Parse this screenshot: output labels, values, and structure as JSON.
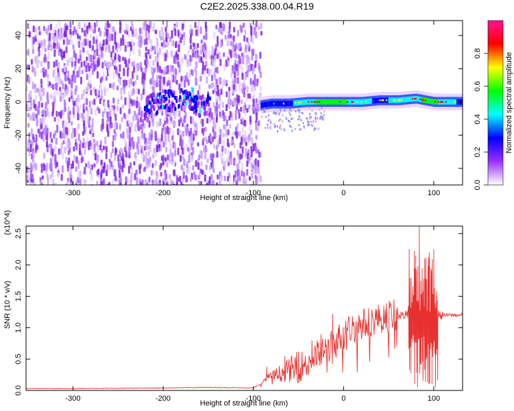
{
  "title": "C2E2.2025.338.00.04.R19",
  "chart_data": [
    {
      "type": "heatmap",
      "xlabel": "Height of straight line (km)",
      "ylabel": "Frequency (Hz)",
      "xlim": [
        -352,
        132
      ],
      "ylim": [
        -50,
        49
      ],
      "xticks": [
        -300,
        -200,
        -100,
        0,
        100
      ],
      "yticks": [
        -40,
        -20,
        0,
        20,
        40
      ],
      "colorbar": {
        "label": "Normalized spectral amplitude",
        "range": [
          0.0,
          1.0
        ],
        "ticks": [
          "0.0",
          "0.2",
          "0.4",
          "0.6",
          "0.8"
        ],
        "colors": [
          "#ffffff",
          "#9b30ff",
          "#0000ff",
          "#00ffff",
          "#00ff00",
          "#ffff00",
          "#ff0000",
          "#ff1493"
        ]
      },
      "regions": {
        "noise_band": [
          -352,
          -92
        ],
        "signal_band": [
          -92,
          132
        ]
      },
      "signal_trace": {
        "x": [
          -92,
          -80,
          -60,
          -40,
          -20,
          0,
          20,
          40,
          60,
          80,
          100,
          132
        ],
        "y": [
          -2,
          -1,
          -1,
          0,
          0,
          0,
          0,
          1,
          1,
          2,
          0,
          0
        ],
        "amplitude": [
          0.45,
          0.5,
          0.55,
          0.7,
          0.85,
          0.8,
          0.6,
          0.55,
          0.6,
          0.75,
          0.8,
          0.5
        ]
      },
      "blobs": [
        {
          "x": -213,
          "y": 0,
          "amplitude": 0.3
        },
        {
          "x": -195,
          "y": 2,
          "amplitude": 0.3
        },
        {
          "x": -175,
          "y": 3,
          "amplitude": 0.35
        },
        {
          "x": -158,
          "y": -1,
          "amplitude": 0.3
        }
      ]
    },
    {
      "type": "line",
      "xlabel": "Height of straight line (km)",
      "ylabel": "SNR (10 * v/v)",
      "yscale_label": "(x10^4)",
      "xlim": [
        -352,
        132
      ],
      "ylim": [
        0,
        2.62
      ],
      "xticks": [
        -300,
        -200,
        -100,
        0,
        100
      ],
      "yticks": [
        0.0,
        0.5,
        1.0,
        1.5,
        2.0,
        2.5
      ],
      "series": [
        {
          "color": "#e8312f",
          "x": [
            -352,
            -300,
            -200,
            -150,
            -100,
            -92,
            -85,
            -75,
            -65,
            -55,
            -45,
            -35,
            -25,
            -15,
            -5,
            0,
            10,
            20,
            30,
            40,
            50,
            60,
            70,
            75,
            80,
            85,
            90,
            95,
            100,
            105,
            110,
            120,
            132
          ],
          "y": [
            0.03,
            0.03,
            0.04,
            0.05,
            0.04,
            0.1,
            0.2,
            0.25,
            0.3,
            0.35,
            0.4,
            0.5,
            0.6,
            0.7,
            0.8,
            0.9,
            1.0,
            1.05,
            1.1,
            1.15,
            1.2,
            1.2,
            1.2,
            1.25,
            1.3,
            1.25,
            1.2,
            1.2,
            1.2,
            1.2,
            1.2,
            1.2,
            1.2
          ],
          "spikes": [
            {
              "x": -85,
              "y": 0.38
            },
            {
              "x": -65,
              "y": 0.55
            },
            {
              "x": -50,
              "y": 0.62
            },
            {
              "x": -35,
              "y": 0.8
            },
            {
              "x": -25,
              "y": 0.9
            },
            {
              "x": -12,
              "y": 1.22
            },
            {
              "x": -5,
              "y": 1.05
            },
            {
              "x": 75,
              "y": 1.8
            },
            {
              "x": 80,
              "y": 2.15
            },
            {
              "x": 84,
              "y": 2.62
            },
            {
              "x": 90,
              "y": 2.1
            },
            {
              "x": 95,
              "y": 2.2
            },
            {
              "x": 100,
              "y": 2.25
            },
            {
              "x": 82,
              "y": 0.05
            },
            {
              "x": 88,
              "y": 0.15
            },
            {
              "x": 98,
              "y": 0.1
            },
            {
              "x": 102,
              "y": 0.05
            }
          ]
        }
      ]
    }
  ]
}
